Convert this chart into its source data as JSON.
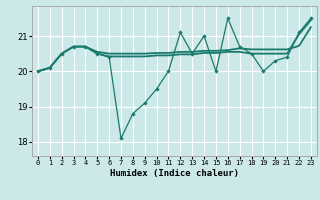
{
  "title": "",
  "xlabel": "Humidex (Indice chaleur)",
  "bg_color": "#cce8e8",
  "grid_color": "#ffffff",
  "line_color": "#1a7a6e",
  "line1_y": [
    20.0,
    20.1,
    20.5,
    20.7,
    20.7,
    20.5,
    20.4,
    18.1,
    18.8,
    19.1,
    19.5,
    20.0,
    21.1,
    20.5,
    21.0,
    20.0,
    21.5,
    20.7,
    20.5,
    20.0,
    20.3,
    20.4,
    21.1,
    21.5
  ],
  "line2_y": [
    20.0,
    20.1,
    20.5,
    20.7,
    20.7,
    20.55,
    20.5,
    20.5,
    20.5,
    20.5,
    20.52,
    20.52,
    20.55,
    20.55,
    20.58,
    20.58,
    20.6,
    20.65,
    20.62,
    20.62,
    20.62,
    20.62,
    20.72,
    21.25
  ],
  "line3_y": [
    20.0,
    20.1,
    20.5,
    20.7,
    20.7,
    20.5,
    20.42,
    20.42,
    20.42,
    20.42,
    20.45,
    20.45,
    20.48,
    20.48,
    20.52,
    20.52,
    20.55,
    20.55,
    20.5,
    20.5,
    20.5,
    20.5,
    21.05,
    21.45
  ],
  "x": [
    0,
    1,
    2,
    3,
    4,
    5,
    6,
    7,
    8,
    9,
    10,
    11,
    12,
    13,
    14,
    15,
    16,
    17,
    18,
    19,
    20,
    21,
    22,
    23
  ],
  "ylim": [
    17.6,
    21.85
  ],
  "yticks": [
    18,
    19,
    20,
    21
  ],
  "xticks": [
    0,
    1,
    2,
    3,
    4,
    5,
    6,
    7,
    8,
    9,
    10,
    11,
    12,
    13,
    14,
    15,
    16,
    17,
    18,
    19,
    20,
    21,
    22,
    23
  ],
  "xtick_labels": [
    "0",
    "1",
    "2",
    "3",
    "4",
    "5",
    "6",
    "7",
    "8",
    "9",
    "10",
    "11",
    "12",
    "13",
    "14",
    "15",
    "16",
    "17",
    "18",
    "19",
    "20",
    "21",
    "22",
    "23"
  ],
  "spine_color": "#aaaaaa",
  "tick_color": "#333333"
}
